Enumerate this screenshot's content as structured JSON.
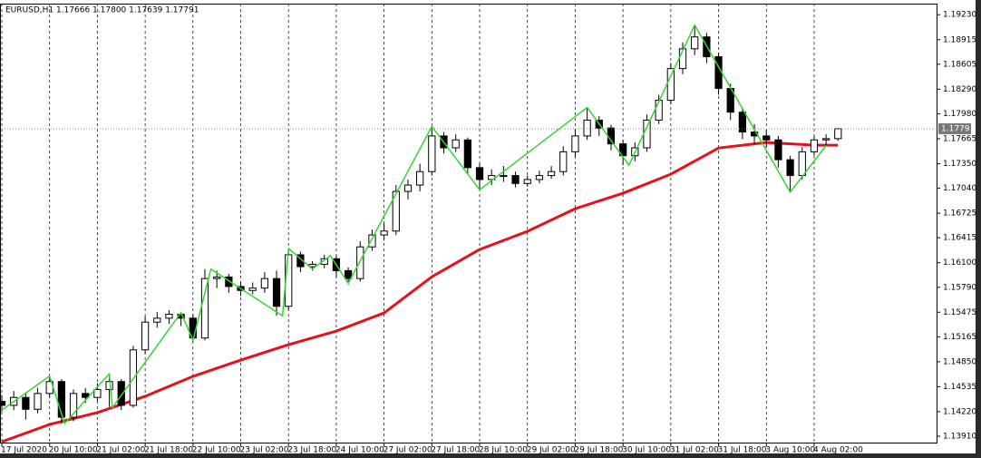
{
  "chart_data": {
    "type": "candlestick",
    "title": "EURUSD,H1  1.17666 1.17800 1.17639 1.17791",
    "x": [
      0,
      4,
      8,
      12,
      16,
      20,
      24,
      28,
      32,
      36,
      40,
      44,
      48,
      52,
      56,
      60,
      64,
      68,
      72,
      76,
      80,
      84,
      88,
      92,
      96,
      100,
      104,
      108,
      112,
      116,
      120,
      124,
      128,
      132,
      136,
      140,
      144,
      148,
      152,
      156,
      160,
      164,
      168,
      172,
      176,
      180,
      184,
      188,
      192,
      196,
      200,
      204,
      208,
      212,
      216,
      220,
      224,
      228,
      232,
      236,
      240,
      244,
      248,
      252,
      256,
      260,
      264,
      268,
      272,
      276,
      280
    ],
    "open": [
      1.1435,
      1.143,
      1.144,
      1.1425,
      1.1445,
      1.146,
      1.1415,
      1.1445,
      1.144,
      1.145,
      1.146,
      1.143,
      1.15,
      1.1535,
      1.154,
      1.1545,
      1.154,
      1.1515,
      1.159,
      1.1592,
      1.158,
      1.1575,
      1.1578,
      1.159,
      1.1555,
      1.162,
      1.1605,
      1.1608,
      1.1615,
      1.16,
      1.159,
      1.163,
      1.1645,
      1.165,
      1.17,
      1.1708,
      1.1725,
      1.177,
      1.1755,
      1.1765,
      1.173,
      1.1715,
      1.172,
      1.172,
      1.171,
      1.1715,
      1.172,
      1.1725,
      1.175,
      1.177,
      1.179,
      1.178,
      1.176,
      1.1745,
      1.1755,
      1.179,
      1.1815,
      1.1855,
      1.188,
      1.1895,
      1.187,
      1.183,
      1.18,
      1.1775,
      1.177,
      1.1765,
      1.174,
      1.172,
      1.175,
      1.1765,
      1.17666
    ],
    "high": [
      1.1443,
      1.1448,
      1.1446,
      1.1452,
      1.1467,
      1.1463,
      1.145,
      1.1452,
      1.1458,
      1.147,
      1.1463,
      1.1505,
      1.1542,
      1.1548,
      1.155,
      1.1547,
      1.1545,
      1.1602,
      1.16,
      1.1596,
      1.1586,
      1.1585,
      1.1598,
      1.16,
      1.1628,
      1.1624,
      1.1612,
      1.162,
      1.1619,
      1.1604,
      1.1637,
      1.1652,
      1.166,
      1.1708,
      1.1715,
      1.1735,
      1.1782,
      1.1775,
      1.1772,
      1.1768,
      1.1735,
      1.1728,
      1.1732,
      1.1725,
      1.172,
      1.1726,
      1.1732,
      1.1757,
      1.1778,
      1.1806,
      1.1795,
      1.1784,
      1.1765,
      1.1762,
      1.1797,
      1.1822,
      1.1862,
      1.1888,
      1.191,
      1.19,
      1.1875,
      1.1836,
      1.1806,
      1.1785,
      1.1778,
      1.177,
      1.1745,
      1.1756,
      1.177,
      1.1772,
      1.178
    ],
    "low": [
      1.1422,
      1.1424,
      1.1412,
      1.142,
      1.144,
      1.1407,
      1.141,
      1.1433,
      1.1435,
      1.1428,
      1.1424,
      1.1427,
      1.1495,
      1.1528,
      1.1533,
      1.153,
      1.151,
      1.1512,
      1.1578,
      1.1572,
      1.1568,
      1.157,
      1.1572,
      1.1543,
      1.155,
      1.1598,
      1.16,
      1.1603,
      1.1592,
      1.1583,
      1.1586,
      1.1625,
      1.1638,
      1.1645,
      1.169,
      1.17,
      1.172,
      1.1748,
      1.175,
      1.1722,
      1.1702,
      1.1708,
      1.1712,
      1.1705,
      1.1706,
      1.171,
      1.1716,
      1.172,
      1.1744,
      1.1765,
      1.177,
      1.1752,
      1.1733,
      1.1738,
      1.175,
      1.1785,
      1.181,
      1.1848,
      1.1872,
      1.1862,
      1.1822,
      1.179,
      1.1766,
      1.176,
      1.1755,
      1.173,
      1.1699,
      1.1715,
      1.1745,
      1.1758,
      1.17639
    ],
    "close": [
      1.143,
      1.144,
      1.1425,
      1.1445,
      1.146,
      1.1415,
      1.1445,
      1.144,
      1.145,
      1.146,
      1.143,
      1.15,
      1.1535,
      1.154,
      1.1545,
      1.154,
      1.1515,
      1.159,
      1.1592,
      1.158,
      1.1575,
      1.1578,
      1.159,
      1.1555,
      1.162,
      1.1605,
      1.1608,
      1.1615,
      1.16,
      1.159,
      1.163,
      1.1645,
      1.165,
      1.17,
      1.1708,
      1.1725,
      1.177,
      1.1755,
      1.1765,
      1.173,
      1.1715,
      1.172,
      1.172,
      1.171,
      1.1715,
      1.172,
      1.1725,
      1.175,
      1.177,
      1.179,
      1.178,
      1.176,
      1.1745,
      1.1755,
      1.179,
      1.1815,
      1.1855,
      1.188,
      1.1895,
      1.187,
      1.183,
      1.18,
      1.1775,
      1.177,
      1.1765,
      1.174,
      1.172,
      1.175,
      1.1765,
      1.17666,
      1.17791
    ],
    "up_color": "#ffffff",
    "down_color": "#000000",
    "current_price": 1.17791,
    "overlays": [
      {
        "type": "line",
        "color": "#e8101a",
        "x": [
          0,
          16,
          32,
          48,
          64,
          80,
          96,
          112,
          128,
          144,
          160,
          176,
          192,
          208,
          224,
          240,
          256,
          272,
          280
        ],
        "values": [
          1.1384,
          1.14059,
          1.14208,
          1.14414,
          1.14665,
          1.14871,
          1.15066,
          1.15237,
          1.15466,
          1.15923,
          1.16267,
          1.16496,
          1.16782,
          1.16977,
          1.17217,
          1.17548,
          1.17617,
          1.17583,
          1.17583
        ]
      },
      {
        "type": "zigzag",
        "color": "#33d633",
        "x": [
          0,
          16,
          21,
          36,
          37,
          60,
          64,
          70,
          94,
          96,
          104,
          110,
          116,
          144,
          160,
          196,
          210,
          232,
          264,
          276
        ],
        "values": [
          1.1424,
          1.1467,
          1.1407,
          1.147,
          1.1427,
          1.1547,
          1.1512,
          1.1602,
          1.1543,
          1.1628,
          1.1602,
          1.1619,
          1.1584,
          1.1782,
          1.1702,
          1.1806,
          1.1733,
          1.191,
          1.1699,
          1.1758
        ]
      }
    ],
    "xlim": [
      0,
      313
    ],
    "ylim": [
      1.1383,
      1.1937
    ],
    "xticks": [
      {
        "value": 0,
        "label": "17 Jul 2020"
      },
      {
        "value": 16,
        "label": "20 Jul 10:00"
      },
      {
        "value": 32,
        "label": "21 Jul 02:00"
      },
      {
        "value": 48,
        "label": "21 Jul 18:00"
      },
      {
        "value": 64,
        "label": "22 Jul 10:00"
      },
      {
        "value": 80,
        "label": "23 Jul 02:00"
      },
      {
        "value": 96,
        "label": "23 Jul 18:00"
      },
      {
        "value": 112,
        "label": "24 Jul 10:00"
      },
      {
        "value": 128,
        "label": "27 Jul 02:00"
      },
      {
        "value": 144,
        "label": "27 Jul 18:00"
      },
      {
        "value": 160,
        "label": "28 Jul 10:00"
      },
      {
        "value": 176,
        "label": "29 Jul 02:00"
      },
      {
        "value": 192,
        "label": "29 Jul 18:00"
      },
      {
        "value": 208,
        "label": "30 Jul 10:00"
      },
      {
        "value": 224,
        "label": "31 Jul 02:00"
      },
      {
        "value": 240,
        "label": "31 Jul 18:00"
      },
      {
        "value": 256,
        "label": "3 Aug 10:00"
      },
      {
        "value": 272,
        "label": "4 Aug 02:00"
      }
    ],
    "yticks": [
      {
        "value": 1.1923,
        "label": "1.19230"
      },
      {
        "value": 1.18915,
        "label": "1.18915"
      },
      {
        "value": 1.18605,
        "label": "1.18605"
      },
      {
        "value": 1.1829,
        "label": "1.18290"
      },
      {
        "value": 1.1798,
        "label": "1.17980"
      },
      {
        "value": 1.17665,
        "label": "1.17665"
      },
      {
        "value": 1.1735,
        "label": "1.17350"
      },
      {
        "value": 1.1704,
        "label": "1.17040"
      },
      {
        "value": 1.16725,
        "label": "1.16725"
      },
      {
        "value": 1.16415,
        "label": "1.16415"
      },
      {
        "value": 1.161,
        "label": "1.16100"
      },
      {
        "value": 1.1579,
        "label": "1.15790"
      },
      {
        "value": 1.15475,
        "label": "1.15475"
      },
      {
        "value": 1.15165,
        "label": "1.15165"
      },
      {
        "value": 1.1485,
        "label": "1.14850"
      },
      {
        "value": 1.14535,
        "label": "1.14535"
      },
      {
        "value": 1.1422,
        "label": "1.14220"
      },
      {
        "value": 1.1391,
        "label": "1.13910"
      }
    ],
    "grid": true
  }
}
